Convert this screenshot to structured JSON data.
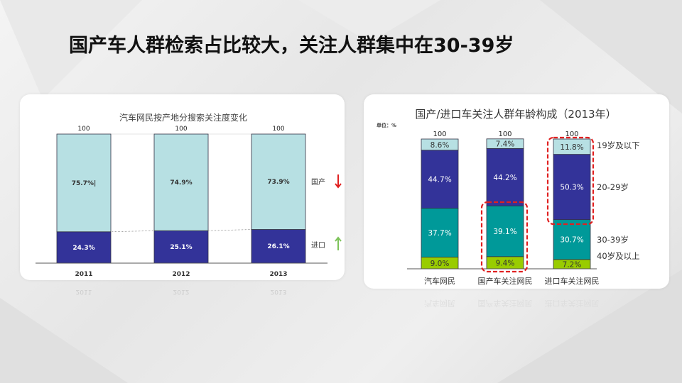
{
  "slide_title": "国产车人群检索占比较大，关注人群集中在30-39岁",
  "chart_data": [
    {
      "type": "bar",
      "stacked": true,
      "title": "汽车网民按产地分搜索关注度变化",
      "categories": [
        "2011",
        "2012",
        "2013"
      ],
      "totals": [
        "100",
        "100",
        "100"
      ],
      "series": [
        {
          "name": "进口",
          "values": [
            24.3,
            25.1,
            26.1
          ],
          "labels": [
            "24.3%",
            "25.1%",
            "26.1%"
          ],
          "color": "#333399",
          "trend": "up",
          "trend_color": "#7dc35a"
        },
        {
          "name": "国产",
          "values": [
            75.7,
            74.9,
            73.9
          ],
          "labels": [
            "75.7%|",
            "74.9%",
            "73.9%"
          ],
          "color": "#b7e0e3",
          "trend": "down",
          "trend_color": "#e02020"
        }
      ],
      "ylim": [
        0,
        100
      ]
    },
    {
      "type": "bar",
      "stacked": true,
      "title": "国产/进口车关注人群年龄构成（2013年）",
      "unit_label": "单位：%",
      "categories": [
        "汽车网民",
        "国产车关注网民",
        "进口车关注网民"
      ],
      "totals": [
        "100",
        "100",
        "100"
      ],
      "series": [
        {
          "name": "40岁及以上",
          "values": [
            9.0,
            9.4,
            7.2
          ],
          "labels": [
            "9.0%",
            "9.4%",
            "7.2%"
          ],
          "color": "#99cc00"
        },
        {
          "name": "30-39岁",
          "values": [
            37.7,
            39.1,
            30.7
          ],
          "labels": [
            "37.7%",
            "39.1%",
            "30.7%"
          ],
          "color": "#009999"
        },
        {
          "name": "20-29岁",
          "values": [
            44.7,
            44.2,
            50.3
          ],
          "labels": [
            "44.7%",
            "44.2%",
            "50.3%"
          ],
          "color": "#333399"
        },
        {
          "name": "19岁及以下",
          "values": [
            8.6,
            7.4,
            11.8
          ],
          "labels": [
            "8.6%",
            "7.4%",
            "11.8%"
          ],
          "color": "#b7e0e3"
        }
      ],
      "highlights": [
        "国产车关注网民: 30-39岁 + 40岁及以上",
        "进口车关注网民: 19岁及以下 + 20-29岁"
      ],
      "highlight_color": "#e02020",
      "ylim": [
        0,
        100
      ]
    }
  ]
}
